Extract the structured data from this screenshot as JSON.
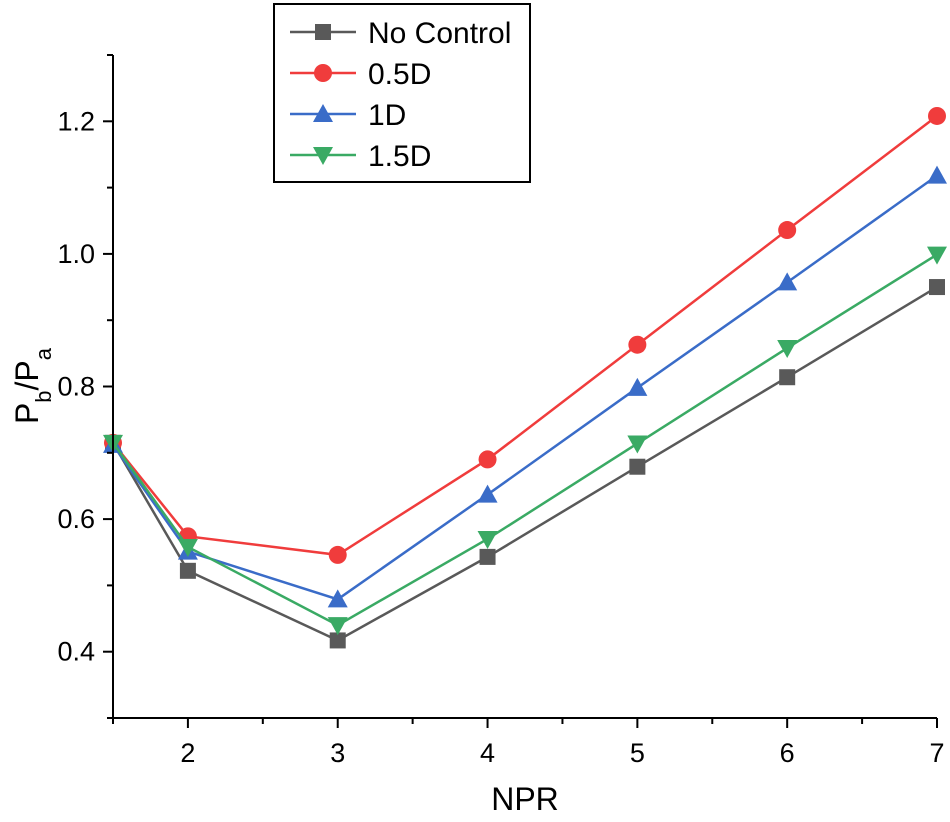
{
  "chart_data": {
    "type": "line",
    "xlabel": "NPR",
    "ylabel": {
      "main": "P",
      "sub1": "b",
      "slash": "/",
      "main2": "P",
      "sub2": "a"
    },
    "xlim": [
      1.5,
      7
    ],
    "ylim": [
      0.3,
      1.3
    ],
    "x_ticks": [
      2,
      3,
      4,
      5,
      6,
      7
    ],
    "x_tick_labels": [
      "2",
      "3",
      "4",
      "5",
      "6",
      "7"
    ],
    "y_ticks": [
      0.4,
      0.6,
      0.8,
      1.0,
      1.2
    ],
    "y_tick_labels": [
      "0.4",
      "0.6",
      "0.8",
      "1.0",
      "1.2"
    ],
    "x": [
      1.5,
      2,
      3,
      4,
      5,
      6,
      7
    ],
    "legend_position": "top-center",
    "series": [
      {
        "name": "No Control",
        "color": "#595959",
        "marker": "square",
        "values": [
          0.715,
          0.522,
          0.417,
          0.543,
          0.679,
          0.814,
          0.95
        ]
      },
      {
        "name": "0.5D",
        "color": "#f03c3c",
        "marker": "circle",
        "values": [
          0.715,
          0.574,
          0.546,
          0.69,
          0.863,
          1.036,
          1.208
        ]
      },
      {
        "name": "1D",
        "color": "#3a6cc8",
        "marker": "triangle-up",
        "values": [
          0.712,
          0.551,
          0.479,
          0.637,
          0.798,
          0.957,
          1.118
        ]
      },
      {
        "name": "1.5D",
        "color": "#3aaa64",
        "marker": "triangle-down",
        "values": [
          0.715,
          0.558,
          0.44,
          0.57,
          0.714,
          0.858,
          0.999
        ]
      }
    ]
  }
}
